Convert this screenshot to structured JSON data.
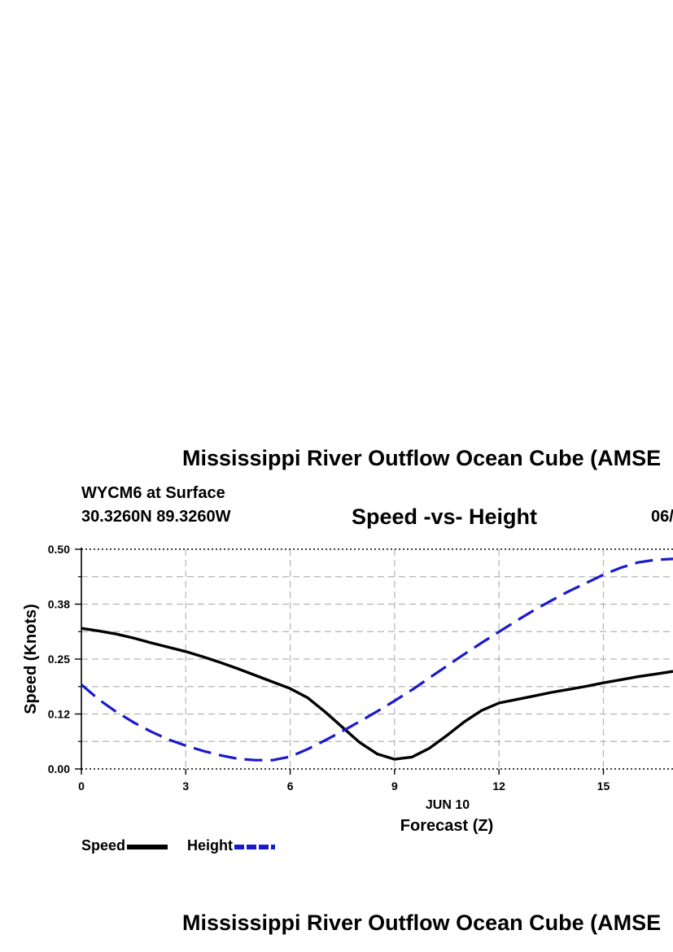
{
  "page": {
    "main_title": "Mississippi River Outflow Ocean Cube (AMSE",
    "main_title_repeat": "Mississippi River Outflow Ocean Cube (AMSE",
    "station": "WYCM6 at Surface",
    "coordinates": "30.3260N  89.3260W",
    "date_fragment": "06/"
  },
  "chart_data": {
    "type": "line",
    "title": "Speed -vs- Height",
    "xlabel": "Forecast (Z)",
    "ylabel": "Speed (Knots)",
    "date_label": "JUN 10",
    "xlim": [
      0,
      17
    ],
    "ylim": [
      0,
      0.5
    ],
    "x_ticks": [
      0,
      3,
      6,
      9,
      12,
      15
    ],
    "y_ticks": [
      "0.00",
      "0.12",
      "0.25",
      "0.38",
      "0.50"
    ],
    "grid": true,
    "legend_position": "bottom-left",
    "x": [
      0,
      0.5,
      1,
      1.5,
      2,
      2.5,
      3,
      3.5,
      4,
      4.5,
      5,
      5.5,
      6,
      6.5,
      7,
      7.5,
      8,
      8.5,
      9,
      9.5,
      10,
      10.5,
      11,
      11.5,
      12,
      12.5,
      13,
      13.5,
      14,
      14.5,
      15,
      15.5,
      16,
      16.5,
      17
    ],
    "series": [
      {
        "name": "Speed",
        "color": "#000000",
        "dash": "solid",
        "values": [
          0.32,
          0.314,
          0.307,
          0.298,
          0.287,
          0.277,
          0.267,
          0.255,
          0.242,
          0.228,
          0.213,
          0.198,
          0.183,
          0.162,
          0.13,
          0.095,
          0.06,
          0.034,
          0.022,
          0.027,
          0.047,
          0.076,
          0.107,
          0.133,
          0.15,
          0.158,
          0.166,
          0.174,
          0.181,
          0.188,
          0.196,
          0.203,
          0.21,
          0.216,
          0.222
        ]
      },
      {
        "name": "Height",
        "color": "#1a1acc",
        "dash": "dashed",
        "values": [
          0.192,
          0.158,
          0.13,
          0.106,
          0.085,
          0.067,
          0.053,
          0.041,
          0.031,
          0.023,
          0.02,
          0.02,
          0.028,
          0.045,
          0.065,
          0.086,
          0.108,
          0.131,
          0.155,
          0.18,
          0.207,
          0.234,
          0.261,
          0.287,
          0.312,
          0.337,
          0.361,
          0.383,
          0.404,
          0.423,
          0.442,
          0.458,
          0.47,
          0.476,
          0.478
        ]
      }
    ]
  },
  "colors": {
    "speed": "#000000",
    "height": "#1a1acc",
    "grid": "#b4b4b4"
  }
}
